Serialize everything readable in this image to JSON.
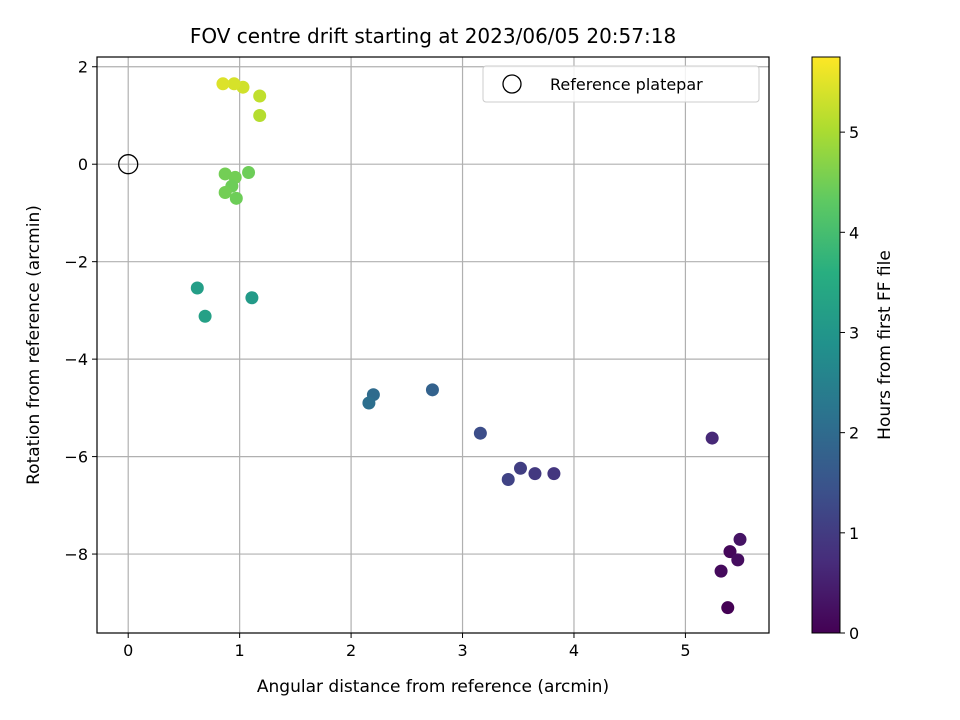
{
  "chart_data": {
    "type": "scatter",
    "title": "FOV centre drift starting at 2023/06/05 20:57:18",
    "xlabel": "Angular distance from reference (arcmin)",
    "ylabel": "Rotation from reference (arcmin)",
    "colorbar_label": "Hours from first FF file",
    "xlim": [
      -0.28,
      5.75
    ],
    "ylim": [
      -9.62,
      2.2
    ],
    "x_ticks": [
      0,
      1,
      2,
      3,
      4,
      5
    ],
    "y_ticks": [
      2,
      0,
      -2,
      -4,
      -6,
      -8
    ],
    "x_tick_labels": [
      "0",
      "1",
      "2",
      "3",
      "4",
      "5"
    ],
    "y_tick_labels": [
      "2",
      "0",
      "−2",
      "−4",
      "−6",
      "−8"
    ],
    "colorbar_range": [
      0,
      5.75
    ],
    "colorbar_ticks": [
      0,
      1,
      2,
      3,
      4,
      5
    ],
    "colorbar_tick_labels": [
      "0",
      "1",
      "2",
      "3",
      "4",
      "5"
    ],
    "colormap": "viridis",
    "grid": true,
    "legend": {
      "position": "top-right",
      "entries": [
        {
          "label": "Reference platepar",
          "marker": "open-circle"
        }
      ]
    },
    "reference_point": {
      "x": 0,
      "y": 0
    },
    "points": [
      {
        "x": 5.38,
        "y": -9.1,
        "hours": 0.0
      },
      {
        "x": 5.32,
        "y": -8.35,
        "hours": 0.15
      },
      {
        "x": 5.4,
        "y": -7.95,
        "hours": 0.1
      },
      {
        "x": 5.47,
        "y": -8.12,
        "hours": 0.2
      },
      {
        "x": 5.49,
        "y": -7.7,
        "hours": 0.3
      },
      {
        "x": 5.24,
        "y": -5.62,
        "hours": 0.65
      },
      {
        "x": 3.82,
        "y": -6.35,
        "hours": 0.9
      },
      {
        "x": 3.65,
        "y": -6.35,
        "hours": 0.95
      },
      {
        "x": 3.52,
        "y": -6.24,
        "hours": 1.05
      },
      {
        "x": 3.41,
        "y": -6.47,
        "hours": 1.15
      },
      {
        "x": 3.16,
        "y": -5.52,
        "hours": 1.35
      },
      {
        "x": 2.73,
        "y": -4.63,
        "hours": 1.8
      },
      {
        "x": 2.2,
        "y": -4.73,
        "hours": 2.0
      },
      {
        "x": 2.16,
        "y": -4.9,
        "hours": 2.1
      },
      {
        "x": 1.11,
        "y": -2.74,
        "hours": 3.1
      },
      {
        "x": 0.62,
        "y": -2.54,
        "hours": 3.2
      },
      {
        "x": 0.69,
        "y": -3.12,
        "hours": 3.25
      },
      {
        "x": 1.08,
        "y": -0.17,
        "hours": 4.45
      },
      {
        "x": 0.87,
        "y": -0.2,
        "hours": 4.5
      },
      {
        "x": 0.96,
        "y": -0.27,
        "hours": 4.5
      },
      {
        "x": 0.93,
        "y": -0.45,
        "hours": 4.45
      },
      {
        "x": 0.87,
        "y": -0.58,
        "hours": 4.5
      },
      {
        "x": 0.97,
        "y": -0.7,
        "hours": 4.45
      },
      {
        "x": 1.18,
        "y": 1.0,
        "hours": 5.1
      },
      {
        "x": 1.18,
        "y": 1.4,
        "hours": 5.2
      },
      {
        "x": 1.03,
        "y": 1.58,
        "hours": 5.35
      },
      {
        "x": 0.95,
        "y": 1.65,
        "hours": 5.4
      },
      {
        "x": 0.85,
        "y": 1.65,
        "hours": 5.45
      }
    ]
  }
}
